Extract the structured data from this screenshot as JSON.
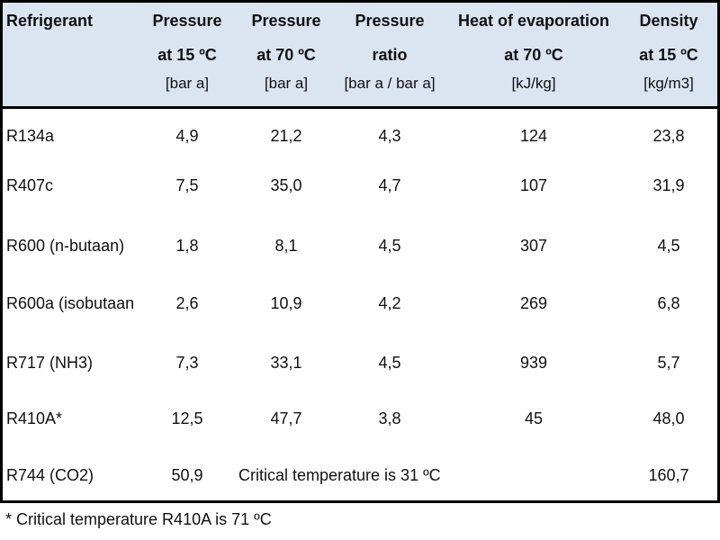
{
  "table": {
    "headers": [
      {
        "title": "Refrigerant",
        "line2": "",
        "unit": ""
      },
      {
        "title": "Pressure",
        "line2": "at 15 ºC",
        "unit": "[bar a]"
      },
      {
        "title": "Pressure",
        "line2": "at 70 ºC",
        "unit": "[bar a]"
      },
      {
        "title": "Pressure",
        "line2": "ratio",
        "unit": "[bar a / bar a]"
      },
      {
        "title": "Heat of evaporation",
        "line2": "at 70 ºC",
        "unit": "[kJ/kg]"
      },
      {
        "title": "Density",
        "line2": "at 15 ºC",
        "unit": "[kg/m3]"
      }
    ],
    "rows": [
      [
        "R134a",
        "4,9",
        "21,2",
        "4,3",
        "124",
        "23,8"
      ],
      [
        "R407c",
        "7,5",
        "35,0",
        "4,7",
        "107",
        "31,9"
      ],
      [
        "R600 (n-butaan)",
        "1,8",
        "8,1",
        "4,5",
        "307",
        "4,5"
      ],
      [
        "R600a (isobutaan",
        "2,6",
        "10,9",
        "4,2",
        "269",
        "6,8"
      ],
      [
        "R717 (NH3)",
        "7,3",
        "33,1",
        "4,5",
        "939",
        "5,7"
      ],
      [
        "R410A*",
        "12,5",
        "47,7",
        "3,8",
        "45",
        "48,0"
      ]
    ],
    "last_row": {
      "name": "R744 (CO2)",
      "p15": "50,9",
      "note": "Critical temperature is 31 ºC",
      "density": "160,7"
    },
    "header_bg": "#dbe5f1"
  },
  "footnote": "* Critical temperature R410A is 71 ºC"
}
